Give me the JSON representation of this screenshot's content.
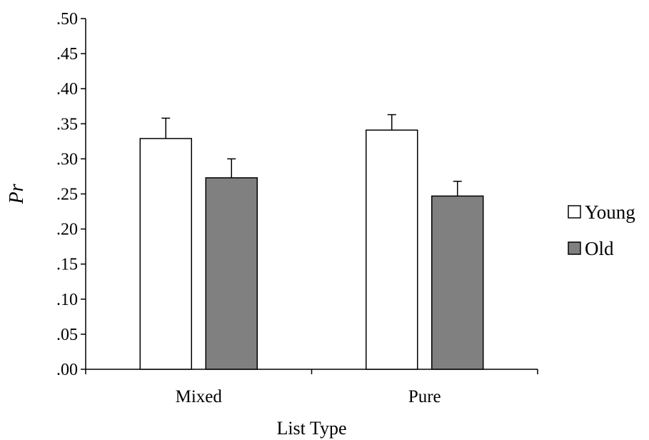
{
  "chart_data": {
    "type": "bar",
    "title": "",
    "xlabel": "List Type",
    "ylabel": "Pr",
    "ylim": [
      0,
      0.5
    ],
    "ytick_values": [
      0,
      0.05,
      0.1,
      0.15,
      0.2,
      0.25,
      0.3,
      0.35,
      0.4,
      0.45,
      0.5
    ],
    "ytick_labels": [
      ".00",
      ".05",
      ".10",
      ".15",
      ".20",
      ".25",
      ".30",
      ".35",
      ".40",
      ".45",
      ".50"
    ],
    "categories": [
      "Mixed",
      "Pure"
    ],
    "series": [
      {
        "name": "Young",
        "values": [
          0.329,
          0.341
        ],
        "errors": [
          0.029,
          0.022
        ],
        "color": "#ffffff"
      },
      {
        "name": "Old",
        "values": [
          0.273,
          0.247
        ],
        "errors": [
          0.027,
          0.021
        ],
        "color": "#808080"
      }
    ],
    "grid": false,
    "legend_position": "right"
  }
}
